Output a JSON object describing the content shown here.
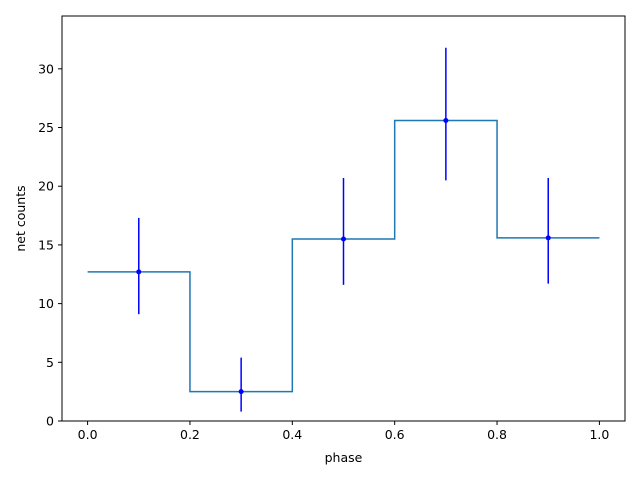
{
  "chart_data": {
    "type": "line",
    "title": "",
    "xlabel": "phase",
    "ylabel": "net counts",
    "xlim": [
      -0.05,
      1.05
    ],
    "ylim": [
      0,
      34.5
    ],
    "xticks": [
      0.0,
      0.2,
      0.4,
      0.6,
      0.8,
      1.0
    ],
    "xtick_labels": [
      "0.0",
      "0.2",
      "0.4",
      "0.6",
      "0.8",
      "1.0"
    ],
    "yticks": [
      0,
      5,
      10,
      15,
      20,
      25,
      30
    ],
    "ytick_labels": [
      "0",
      "5",
      "10",
      "15",
      "20",
      "25",
      "30"
    ],
    "grid": false,
    "step_line": {
      "drawstyle": "steps-mid-edges",
      "bin_edges": [
        0.0,
        0.2,
        0.4,
        0.6,
        0.8,
        1.0
      ],
      "values": [
        12.7,
        2.5,
        15.5,
        25.6,
        15.6
      ],
      "color": "#1f77b4"
    },
    "errorbar_points": {
      "x": [
        0.1,
        0.3,
        0.5,
        0.7,
        0.9
      ],
      "y": [
        12.7,
        2.5,
        15.5,
        25.6,
        15.6
      ],
      "y_low": [
        9.1,
        0.8,
        11.6,
        20.5,
        11.7
      ],
      "y_high": [
        17.3,
        5.4,
        20.7,
        31.8,
        20.7
      ],
      "color": "#0000ff"
    }
  }
}
